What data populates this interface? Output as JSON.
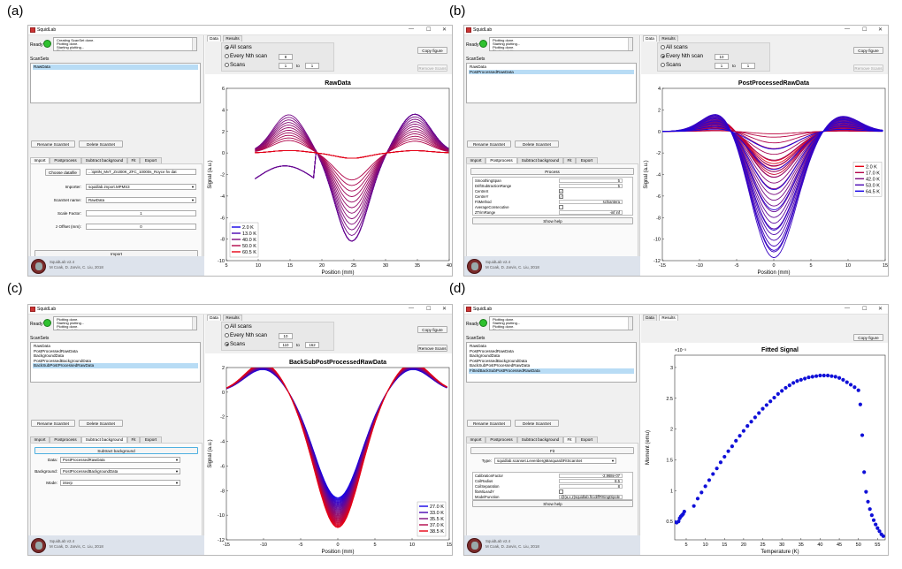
{
  "panels": [
    {
      "label": "(a)",
      "title": "SquidLab",
      "log": [
        "Creating ScanSet done.",
        "Plotting done.",
        "Starting plotting...",
        "Plotting done."
      ],
      "scansets": [
        "RawData"
      ],
      "selected": 0,
      "active_tab": "Import",
      "import": {
        "choose_label": "Choose datafile",
        "file_value": "...\\ip8iN_MvT_Zn300K_ZFC_10000s_Royce hv dat",
        "importer_label": "Importer:",
        "importer_value": "squidlab.import.MPMS3",
        "scanset_name_label": "ScanSet name:",
        "scanset_name_value": "RawData",
        "scale_label": "Scale Factor:",
        "scale_value": "1",
        "zoffset_label": "z Offset (mm):",
        "zoffset_value": "0",
        "import_label": "Import"
      },
      "remove_enabled": false,
      "opts": {
        "selected": 0,
        "nth": "8",
        "from": "1",
        "to": "1"
      },
      "chart_data": {
        "type": "line",
        "title": "RawData",
        "xlabel": "Position (mm)",
        "ylabel": "Signal (a.u.)",
        "xlim": [
          5,
          40
        ],
        "ylim": [
          -10,
          6
        ],
        "xticks": [
          5,
          10,
          15,
          20,
          25,
          30,
          35,
          40
        ],
        "yticks": [
          -10,
          -8,
          -6,
          -4,
          -2,
          0,
          2,
          4,
          6
        ],
        "legend": [
          "2.0 K",
          "13.0 K",
          "40.0 K",
          "50.0 K",
          "60.5 K"
        ],
        "legend_position": "bottom-left"
      }
    },
    {
      "label": "(b)",
      "title": "SquidLab",
      "log": [
        "Plotting done.",
        "Starting plotting...",
        "Plotting done.",
        "Starting plotting..."
      ],
      "scansets": [
        "RawData",
        "PostProcessedRawData"
      ],
      "selected": 1,
      "active_tab": "Postprocess",
      "postprocess": {
        "process_label": "Process",
        "rows": [
          {
            "k": "SmoothingSpan",
            "v": "5",
            "type": "text"
          },
          {
            "k": "DriftSubtractionRange",
            "v": "5",
            "type": "text"
          },
          {
            "k": "CentreX",
            "v": "✓",
            "type": "check"
          },
          {
            "k": "CentreY",
            "v": "✓",
            "type": "check"
          },
          {
            "k": "FitMethod",
            "v": "schiantera",
            "type": "text"
          },
          {
            "k": "AverageConsecutive",
            "v": "",
            "type": "check"
          },
          {
            "k": "ZTrimRange",
            "v": "-inf inf",
            "type": "text"
          }
        ],
        "help_label": "Show help"
      },
      "remove_enabled": false,
      "opts": {
        "selected": 1,
        "nth": "10",
        "from": "1",
        "to": "1"
      },
      "chart_data": {
        "type": "line",
        "title": "PostProcessedRawData",
        "xlabel": "Position (mm)",
        "ylabel": "Signal (a.u.)",
        "xlim": [
          -15,
          15
        ],
        "ylim": [
          -12,
          4
        ],
        "xticks": [
          -15,
          -10,
          -5,
          0,
          5,
          10,
          15
        ],
        "yticks": [
          -12,
          -10,
          -8,
          -6,
          -4,
          -2,
          0,
          2,
          4
        ],
        "legend": [
          "2.0 K",
          "17.0 K",
          "42.0 K",
          "53.0 K",
          "64.5 K"
        ],
        "legend_position": "right"
      }
    },
    {
      "label": "(c)",
      "title": "SquidLab",
      "log": [
        "Plotting done.",
        "Starting plotting...",
        "Plotting done.",
        "Starting plotting..."
      ],
      "scansets": [
        "RawData",
        "PostProcessedRawData",
        "BackgroundData",
        "PostProcessedBackgroundData",
        "BackSubPostProcessedRawData"
      ],
      "selected": 4,
      "active_tab": "Subtract background",
      "subtract": {
        "btn_label": "Subtract background",
        "data_label": "Data:",
        "data_value": "PostProcessedRawData",
        "bg_label": "Background:",
        "bg_value": "PostProcessedBackgroundData",
        "mode_label": "Mode:",
        "mode_value": "interp"
      },
      "remove_enabled": true,
      "opts": {
        "selected": 2,
        "nth": "10",
        "from": "110",
        "to": "162"
      },
      "chart_data": {
        "type": "line",
        "title": "BackSubPostProcessedRawData",
        "xlabel": "Position (mm)",
        "ylabel": "Signal (a.u.)",
        "xlim": [
          -15,
          15
        ],
        "ylim": [
          -12,
          2
        ],
        "xticks": [
          -15,
          -10,
          -5,
          0,
          5,
          10,
          15
        ],
        "yticks": [
          -12,
          -10,
          -8,
          -6,
          -4,
          -2,
          0,
          2
        ],
        "legend": [
          "27.0 K",
          "33.0 K",
          "35.5 K",
          "37.0 K",
          "38.5 K"
        ],
        "legend_position": "bottom-right"
      }
    },
    {
      "label": "(d)",
      "title": "SquidLab",
      "log": [
        "Plotting done.",
        "Starting plotting...",
        "Plotting done.",
        "Starting plotting..."
      ],
      "scansets": [
        "RawData",
        "PostProcessedRawData",
        "BackgroundData",
        "PostProcessedBackgroundData",
        "BackSubPostProcessedRawData",
        "FittedBackSubPostProcessedRawData"
      ],
      "selected": 5,
      "active_tab": "Fit",
      "fit": {
        "fit_label": "Fit",
        "type_label": "Type:",
        "type_value": "squidlab.scanset.LevenbergMarquardtFitScanSet",
        "rows": [
          {
            "k": "CalibrationFactor",
            "v": "-2.968e-07",
            "type": "text"
          },
          {
            "k": "CoilRadius",
            "v": "8.5",
            "type": "text"
          },
          {
            "k": "CoilSeparation",
            "v": "8",
            "type": "text"
          },
          {
            "k": "fitxMiLeadY",
            "v": "",
            "type": "check"
          },
          {
            "k": "ModelFunction",
            "v": "@(a,x,z)squidlab.fit.idiffFittingDipole",
            "type": "text"
          }
        ],
        "help_label": "Show help"
      },
      "remove_enabled": true,
      "copy_label": "Copy figure",
      "chart_data": {
        "type": "scatter",
        "title": "Fitted Signal",
        "xlabel": "Temperature (K)",
        "ylabel": "Moment (emu)",
        "exponent": "×10⁻³",
        "xlim": [
          2,
          57
        ],
        "ylim": [
          0.2,
          3.2
        ],
        "xticks": [
          5,
          10,
          15,
          20,
          25,
          30,
          35,
          40,
          45,
          50,
          55
        ],
        "yticks": [
          0.5,
          1,
          1.5,
          2,
          2.5,
          3
        ],
        "x": [
          2,
          2.5,
          3,
          3.3,
          3.6,
          3.9,
          4.2,
          4.5,
          7,
          8,
          9,
          10,
          11,
          12,
          13,
          14,
          15,
          16,
          17,
          18,
          19,
          20,
          21,
          22,
          23,
          24,
          25,
          26,
          27,
          28,
          29,
          30,
          31,
          32,
          33,
          34,
          35,
          36,
          37,
          38,
          39,
          40,
          41,
          42,
          43,
          44,
          45,
          46,
          47,
          48,
          49,
          50,
          50.5,
          51,
          51.5,
          52,
          52.5,
          53,
          53.5,
          54,
          54.5,
          55,
          55.5,
          56,
          56.5
        ],
        "y": [
          0.49,
          0.48,
          0.5,
          0.55,
          0.58,
          0.6,
          0.62,
          0.66,
          0.75,
          0.87,
          0.97,
          1.07,
          1.17,
          1.27,
          1.36,
          1.46,
          1.55,
          1.64,
          1.72,
          1.81,
          1.89,
          1.97,
          2.05,
          2.12,
          2.19,
          2.26,
          2.33,
          2.39,
          2.45,
          2.51,
          2.57,
          2.62,
          2.67,
          2.71,
          2.75,
          2.78,
          2.8,
          2.82,
          2.84,
          2.85,
          2.86,
          2.87,
          2.87,
          2.87,
          2.86,
          2.85,
          2.83,
          2.8,
          2.76,
          2.72,
          2.68,
          2.63,
          2.4,
          1.9,
          1.3,
          0.98,
          0.82,
          0.7,
          0.6,
          0.52,
          0.45,
          0.39,
          0.34,
          0.29,
          0.26
        ]
      }
    }
  ],
  "common": {
    "ready": "Ready",
    "scansets_heading": "ScanSets",
    "rename": "Rename ScanSet",
    "delete": "Delete ScanSet",
    "tabs": [
      "Import",
      "Postprocess",
      "Subtract background",
      "Fit",
      "Export"
    ],
    "rtabs": [
      "Data",
      "Results"
    ],
    "copy": "Copy figure",
    "remove": "Remove Scans",
    "all_scans": "All scans",
    "every_nth": "Every Nth scan",
    "scans": "Scans",
    "to": "to",
    "version": "SquidLab v2.4",
    "authors": "M Coak, D. Jarvis, C. Liu, 2018",
    "colors": {
      "accent": "#b8dcf5",
      "low": "#0000dd",
      "high": "#dd0000"
    }
  }
}
